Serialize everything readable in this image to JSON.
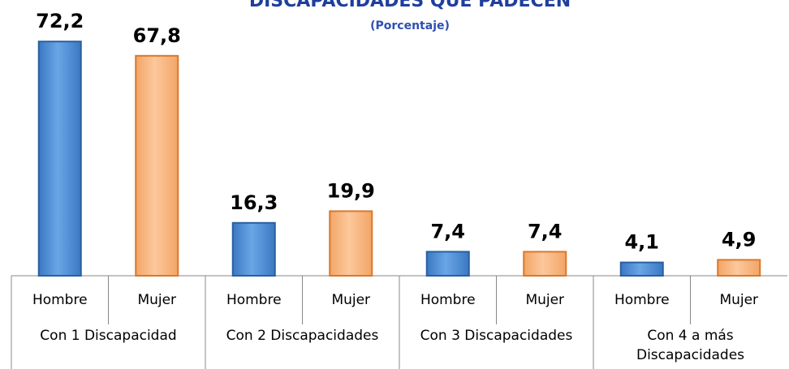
{
  "chart_data": {
    "type": "bar",
    "title": "DISCAPACIDADES  QUE PADECEN",
    "subtitle": "(Porcentaje)",
    "categories": [
      "Con 1 Discapacidad",
      "Con 2 Discapacidades",
      "Con 3 Discapacidades",
      "Con 4 a más Discapacidades"
    ],
    "series": [
      {
        "name": "Hombre",
        "color": "#4a8ad4",
        "values": [
          72.2,
          16.3,
          7.4,
          4.1
        ],
        "value_labels": [
          "72,2",
          "16,3",
          "7,4",
          "4,1"
        ]
      },
      {
        "name": "Mujer",
        "color": "#f9b47c",
        "values": [
          67.8,
          19.9,
          7.4,
          4.9
        ],
        "value_labels": [
          "67,8",
          "19,9",
          "7,4",
          "4,9"
        ]
      }
    ]
  }
}
